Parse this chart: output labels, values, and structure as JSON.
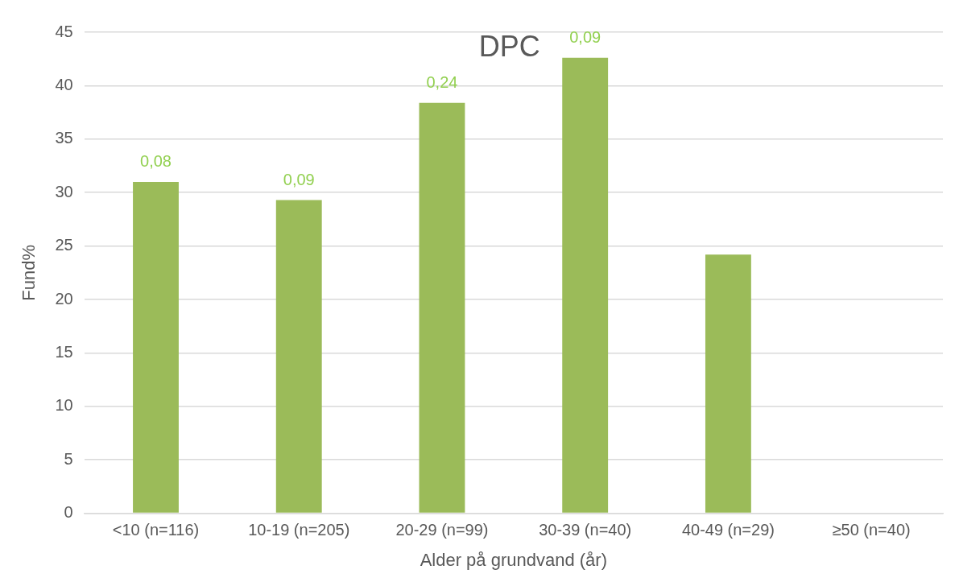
{
  "chart_data": {
    "type": "bar",
    "title": "DPC",
    "xlabel": "Alder på grundvand (år)",
    "ylabel": "Fund%",
    "categories": [
      "<10 (n=116)",
      "10-19 (n=205)",
      "20-29 (n=99)",
      "30-39 (n=40)",
      "40-49 (n=29)",
      "≥50 (n=40)"
    ],
    "values": [
      31.0,
      29.3,
      38.4,
      42.6,
      24.2,
      0
    ],
    "annotations": [
      {
        "text": "0,08",
        "x": "<10 (n=116)",
        "y": 31.0
      },
      {
        "text": "0,09",
        "x": "10-19 (n=205)",
        "y": 29.3
      },
      {
        "text": "0,24",
        "x": "20-29 (n=99)",
        "y": 38.4
      },
      {
        "text": "0,09",
        "x": "30-39 (n=40)",
        "y": 42.6
      }
    ],
    "color": "#9bbb59",
    "ylim": [
      0,
      45
    ],
    "yticks": [
      0,
      5,
      10,
      15,
      20,
      25,
      30,
      35,
      40,
      45
    ],
    "grid": "y",
    "legend": false
  }
}
